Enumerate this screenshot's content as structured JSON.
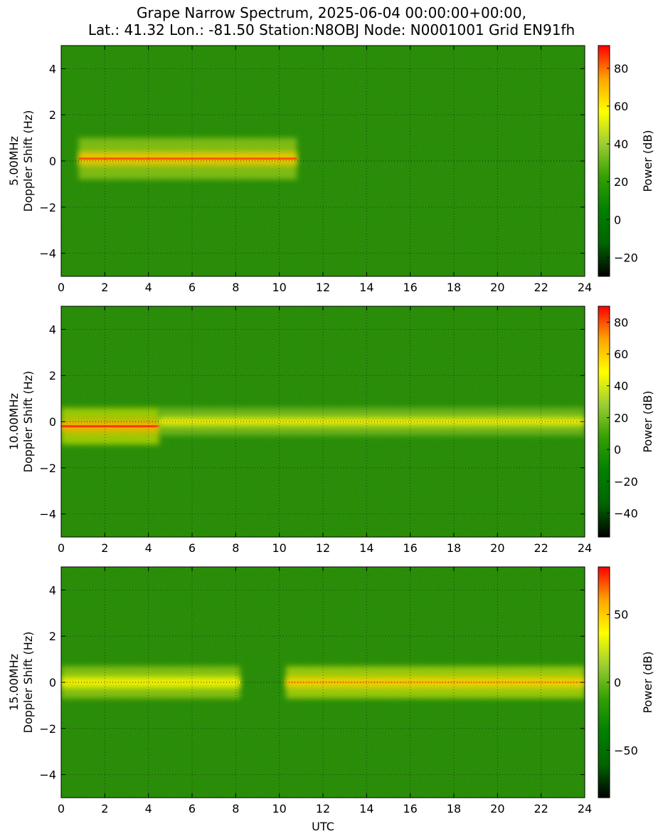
{
  "title_line1": "Grape Narrow Spectrum, 2025-06-04 00:00:00+00:00,",
  "title_line2": "Lat.: 41.32 Lon.: -81.50 Station:N8OBJ Node: N0001001 Grid EN91fh",
  "xlabel": "UTC",
  "colorbar_label": "Power (dB)",
  "colormap": [
    "#000000",
    "#006400",
    "#008000",
    "#33a000",
    "#9acd32",
    "#ffff00",
    "#ffa500",
    "#ff0000"
  ],
  "chart_data": [
    {
      "type": "heatmap",
      "ylabel_line1": "5.00MHz",
      "ylabel_line2": "Doppler Shift (Hz)",
      "xlim": [
        0,
        24
      ],
      "ylim": [
        -5,
        5
      ],
      "xticks": [
        0,
        2,
        4,
        6,
        8,
        10,
        12,
        14,
        16,
        18,
        20,
        22,
        24
      ],
      "yticks": [
        -4,
        -2,
        0,
        2,
        4
      ],
      "ytick_labels": [
        "−4",
        "−2",
        "0",
        "2",
        "4"
      ],
      "colorbar_range": [
        -30,
        92
      ],
      "colorbar_ticks": [
        -20,
        0,
        20,
        40,
        60,
        80
      ],
      "colorbar_tick_labels": [
        "−20",
        "0",
        "20",
        "40",
        "60",
        "80"
      ],
      "grid": true,
      "signal_segments": [
        {
          "x_start": 0.8,
          "x_end": 10.8,
          "doppler": 0.1,
          "spread": 1.8,
          "peak_power": 85
        }
      ]
    },
    {
      "type": "heatmap",
      "ylabel_line1": "10.00MHz",
      "ylabel_line2": "Doppler Shift (Hz)",
      "xlim": [
        0,
        24
      ],
      "ylim": [
        -5,
        5
      ],
      "xticks": [
        0,
        2,
        4,
        6,
        8,
        10,
        12,
        14,
        16,
        18,
        20,
        22,
        24
      ],
      "yticks": [
        -4,
        -2,
        0,
        2,
        4
      ],
      "ytick_labels": [
        "−4",
        "−2",
        "0",
        "2",
        "4"
      ],
      "colorbar_range": [
        -55,
        90
      ],
      "colorbar_ticks": [
        -40,
        -20,
        0,
        20,
        40,
        60,
        80
      ],
      "colorbar_tick_labels": [
        "−40",
        "−20",
        "0",
        "20",
        "40",
        "60",
        "80"
      ],
      "grid": true,
      "signal_segments": [
        {
          "x_start": 0,
          "x_end": 4.5,
          "doppler": -0.2,
          "spread": 1.6,
          "peak_power": 85
        },
        {
          "x_start": 4.5,
          "x_end": 24,
          "doppler": 0,
          "spread": 1.2,
          "peak_power": 55
        }
      ]
    },
    {
      "type": "heatmap",
      "ylabel_line1": "15.00MHz",
      "ylabel_line2": "Doppler Shift (Hz)",
      "xlim": [
        0,
        24
      ],
      "ylim": [
        -5,
        5
      ],
      "xticks": [
        0,
        2,
        4,
        6,
        8,
        10,
        12,
        14,
        16,
        18,
        20,
        22,
        24
      ],
      "yticks": [
        -4,
        -2,
        0,
        2,
        4
      ],
      "ytick_labels": [
        "−4",
        "−2",
        "0",
        "2",
        "4"
      ],
      "colorbar_range": [
        -85,
        85
      ],
      "colorbar_ticks": [
        -50,
        0,
        50
      ],
      "colorbar_tick_labels": [
        "−50",
        "0",
        "50"
      ],
      "grid": true,
      "signal_segments": [
        {
          "x_start": 0,
          "x_end": 8.2,
          "doppler": 0,
          "spread": 1.4,
          "peak_power": 45
        },
        {
          "x_start": 10.3,
          "x_end": 24,
          "doppler": 0,
          "spread": 1.4,
          "peak_power": 60
        }
      ]
    }
  ]
}
